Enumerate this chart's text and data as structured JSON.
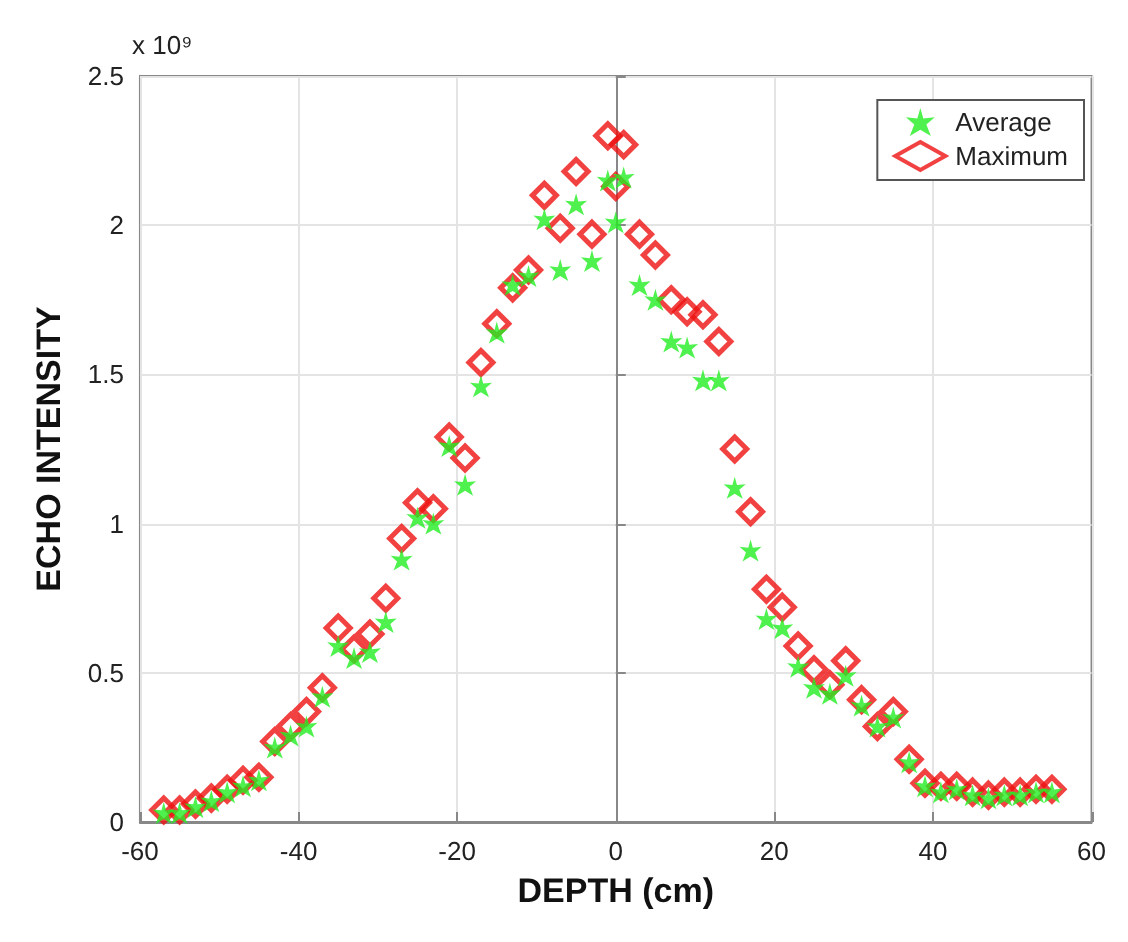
{
  "chart_data": {
    "type": "scatter",
    "xlabel": "DEPTH (cm)",
    "ylabel": "ECHO INTENSITY",
    "annotations": [
      "x 10⁹"
    ],
    "x": [
      -57,
      -55,
      -53,
      -51,
      -49,
      -47,
      -45,
      -43,
      -41,
      -39,
      -37,
      -35,
      -33,
      -31,
      -29,
      -27,
      -25,
      -23,
      -21,
      -19,
      -17,
      -15,
      -13,
      -11,
      -9,
      -7,
      -5,
      -3,
      -1,
      0,
      1,
      3,
      5,
      7,
      9,
      11,
      13,
      15,
      17,
      19,
      21,
      23,
      25,
      27,
      29,
      31,
      33,
      35,
      37,
      39,
      41,
      43,
      45,
      47,
      49,
      51,
      53,
      55
    ],
    "series": [
      {
        "name": "Average",
        "color": "#22ee22",
        "marker": "star",
        "values": [
          0.03,
          0.03,
          0.05,
          0.07,
          0.1,
          0.12,
          0.14,
          0.25,
          0.29,
          0.32,
          0.42,
          0.59,
          0.55,
          0.57,
          0.67,
          0.88,
          1.02,
          1.0,
          1.26,
          1.13,
          1.46,
          1.64,
          1.8,
          1.83,
          2.02,
          1.85,
          2.07,
          1.88,
          2.15,
          2.01,
          2.16,
          1.8,
          1.75,
          1.61,
          1.59,
          1.48,
          1.48,
          1.12,
          0.91,
          0.68,
          0.65,
          0.52,
          0.45,
          0.43,
          0.49,
          0.39,
          0.32,
          0.35,
          0.2,
          0.12,
          0.1,
          0.11,
          0.09,
          0.08,
          0.09,
          0.09,
          0.1,
          0.1
        ]
      },
      {
        "name": "Maximum",
        "color": "#ee1111",
        "marker": "diamond",
        "values": [
          0.04,
          0.04,
          0.06,
          0.08,
          0.11,
          0.14,
          0.15,
          0.27,
          0.32,
          0.37,
          0.45,
          0.65,
          0.58,
          0.63,
          0.75,
          0.95,
          1.07,
          1.05,
          1.29,
          1.22,
          1.54,
          1.67,
          1.79,
          1.85,
          2.1,
          1.99,
          2.18,
          1.97,
          2.3,
          2.13,
          2.27,
          1.97,
          1.9,
          1.75,
          1.71,
          1.7,
          1.61,
          1.25,
          1.04,
          0.78,
          0.72,
          0.59,
          0.51,
          0.46,
          0.54,
          0.41,
          0.32,
          0.37,
          0.21,
          0.13,
          0.12,
          0.12,
          0.1,
          0.09,
          0.1,
          0.1,
          0.11,
          0.11
        ]
      }
    ],
    "xlim": [
      -60,
      60
    ],
    "xticks": [
      -60,
      -40,
      -20,
      0,
      20,
      40,
      60
    ],
    "ylim": [
      0,
      2.5
    ],
    "yticks": [
      0,
      0.5,
      1,
      1.5,
      2,
      2.5
    ],
    "grid": true,
    "legend": "top right"
  }
}
